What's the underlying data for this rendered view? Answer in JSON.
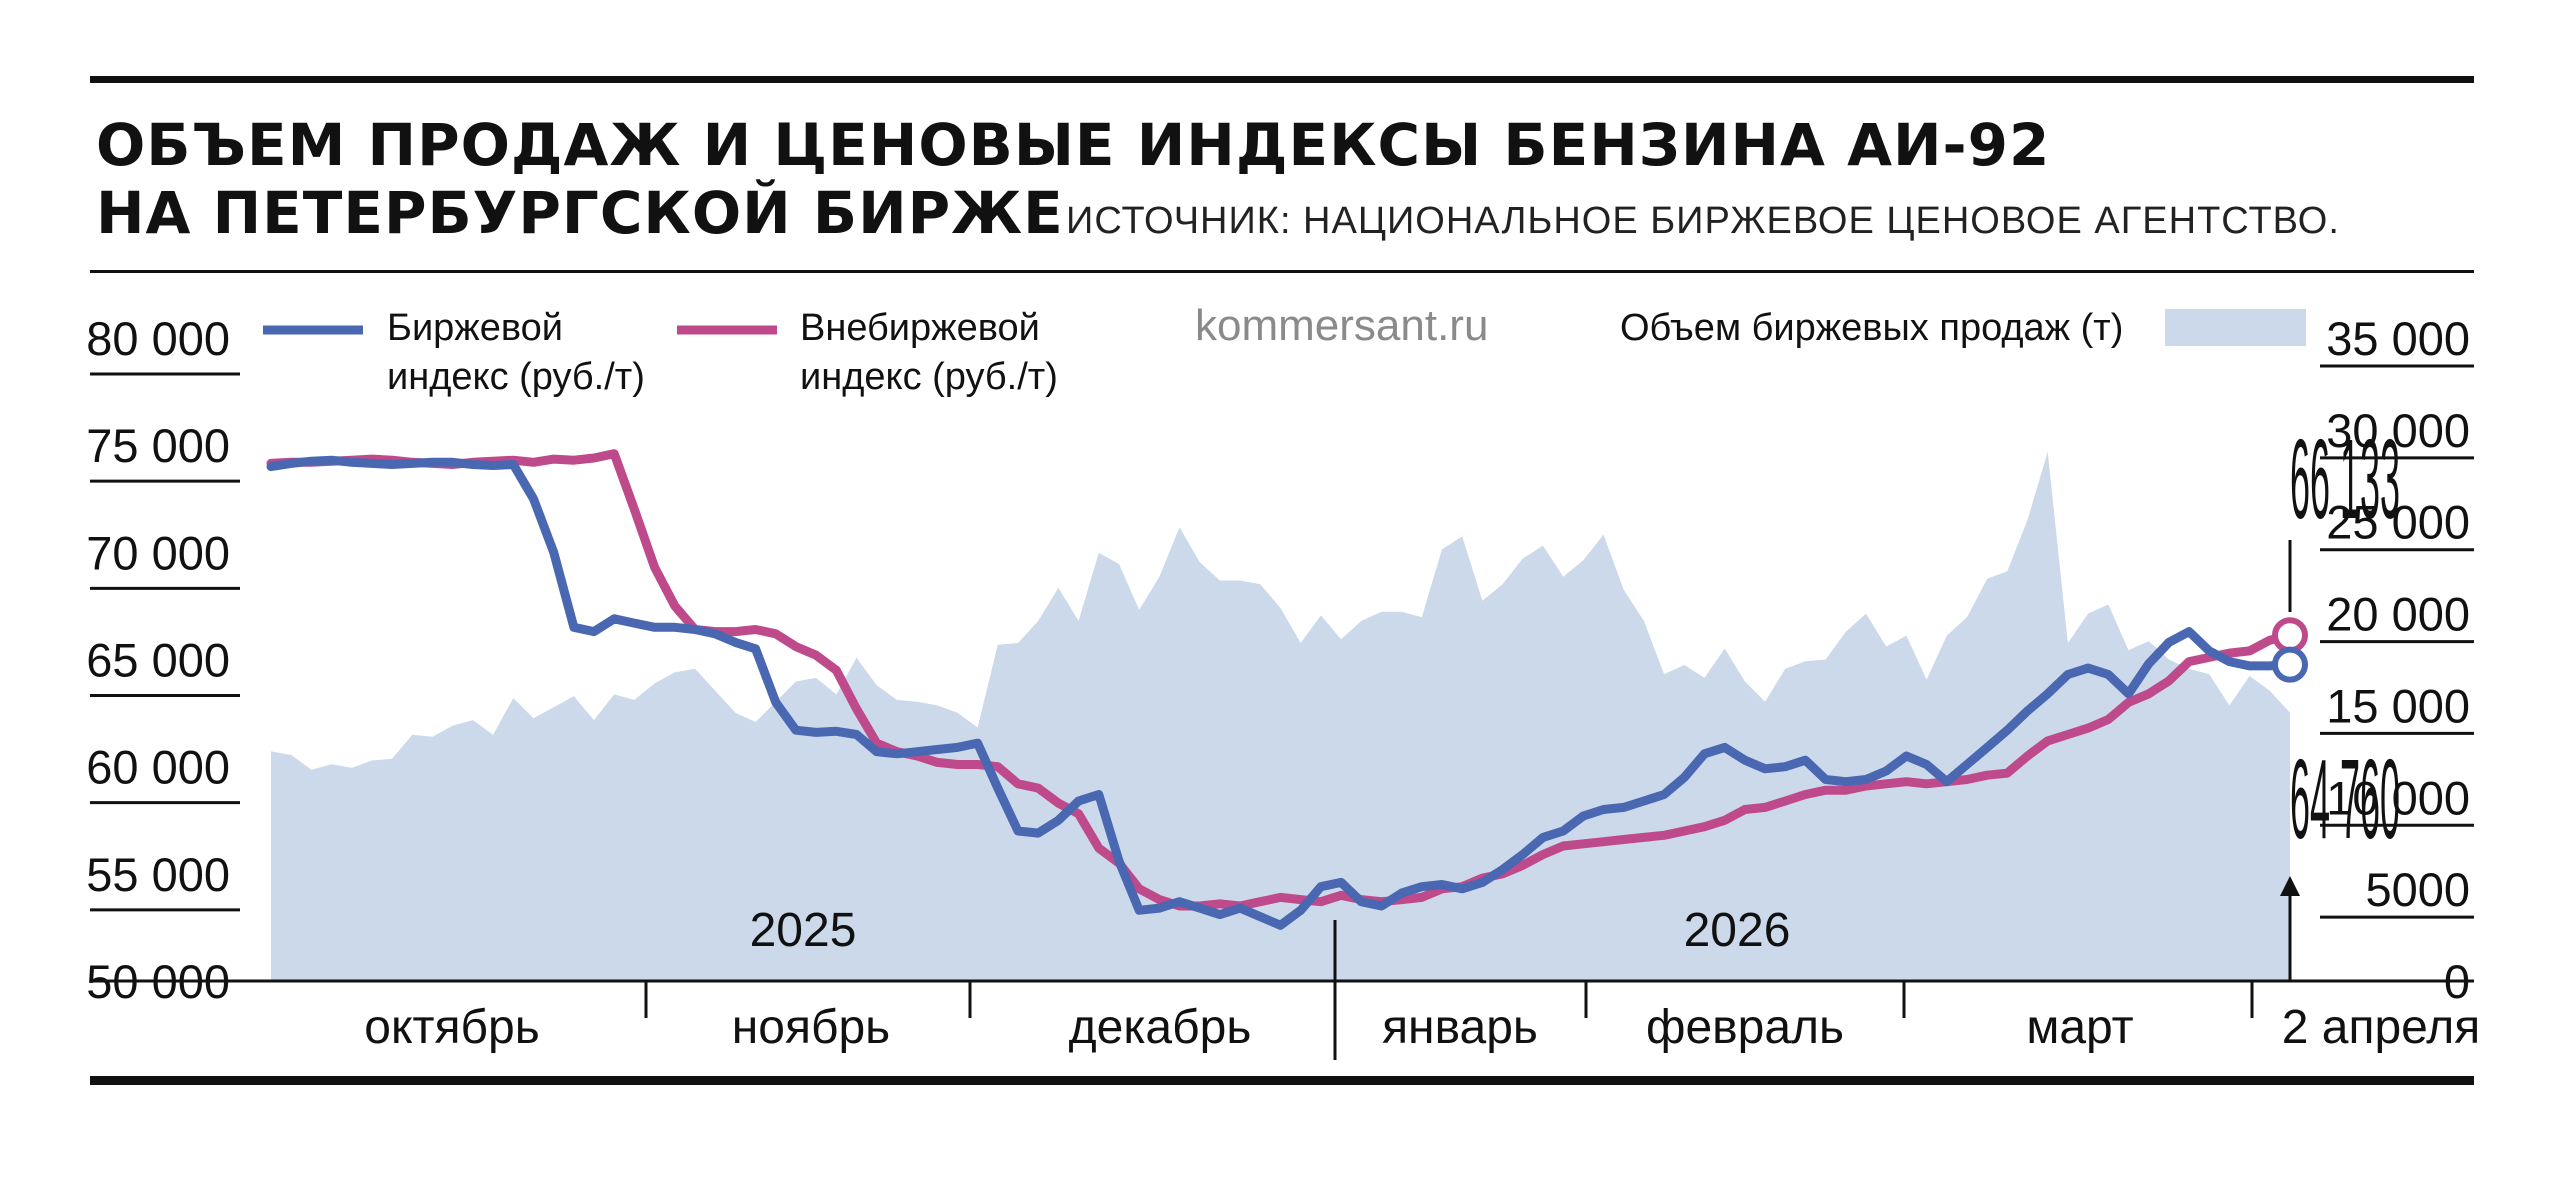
{
  "header": {
    "title_line1": "ОБЪЕМ ПРОДАЖ И ЦЕНОВЫЕ ИНДЕКСЫ БЕНЗИНА АИ-92",
    "title_line2": "НА ПЕТЕРБУРГСКОЙ БИРЖЕ",
    "source": "ИСТОЧНИК: НАЦИОНАЛЬНОЕ БИРЖЕВОЕ ЦЕНОВОЕ АГЕНТСТВО."
  },
  "watermark": "kommersant.ru",
  "legend": {
    "exchange_line1": "Биржевой",
    "exchange_line2": "индекс (руб./т)",
    "otc_line1": "Внебиржевой",
    "otc_line2": "индекс (руб./т)",
    "volume": "Объем биржевых продаж (т)"
  },
  "years": [
    "2025",
    "2026"
  ],
  "months": [
    "октябрь",
    "ноябрь",
    "декабрь",
    "январь",
    "февраль",
    "март",
    "2 апреля"
  ],
  "callouts": {
    "otc_last": "66 133",
    "exchange_last": "64 760"
  },
  "colors": {
    "exchange": "#4a67b2",
    "otc": "#bf4a8b",
    "volume": "#cbd9ea",
    "rule": "#111111"
  },
  "chart_data": {
    "type": "line",
    "y_left": {
      "ticks": [
        "80 000",
        "75 000",
        "70 000",
        "65 000",
        "60 000",
        "55 000",
        "50 000"
      ],
      "ylim": [
        50000,
        80000
      ]
    },
    "y_right": {
      "ticks": [
        "35 000",
        "30 000",
        "25 000",
        "20 000",
        "15 000",
        "10 000",
        "5000",
        "0"
      ],
      "ylim": [
        0,
        35000
      ]
    },
    "x_points": 101,
    "series": [
      {
        "name": "Биржевой индекс (руб./т)",
        "axis": "left",
        "values": [
          74000,
          74150,
          74250,
          74300,
          74200,
          74150,
          74100,
          74150,
          74200,
          74200,
          74100,
          74050,
          74100,
          72500,
          70000,
          66500,
          66300,
          66900,
          66700,
          66500,
          66500,
          66400,
          66200,
          65800,
          65500,
          63000,
          61700,
          61600,
          61650,
          61500,
          60700,
          60600,
          60700,
          60800,
          60900,
          61100,
          59000,
          57000,
          56900,
          57500,
          58400,
          58700,
          55600,
          53300,
          53400,
          53700,
          53400,
          53100,
          53400,
          53000,
          52600,
          53300,
          54400,
          54600,
          53700,
          53500,
          54100,
          54400,
          54500,
          54300,
          54600,
          55200,
          55900,
          56700,
          57000,
          57700,
          58000,
          58100,
          58400,
          58700,
          59500,
          60600,
          60900,
          60300,
          59900,
          60000,
          60300,
          59400,
          59300,
          59400,
          59800,
          60500,
          60100,
          59300,
          60100,
          60900,
          61700,
          62600,
          63400,
          64300,
          64600,
          64300,
          63400,
          64800,
          65800,
          66300,
          65400,
          64900,
          64700,
          64700,
          64760
        ]
      },
      {
        "name": "Внебиржевой индекс (руб./т)",
        "axis": "left",
        "values": [
          74150,
          74200,
          74200,
          74250,
          74300,
          74350,
          74300,
          74200,
          74150,
          74100,
          74200,
          74250,
          74300,
          74200,
          74350,
          74300,
          74400,
          74600,
          72000,
          69300,
          67500,
          66400,
          66300,
          66300,
          66400,
          66200,
          65600,
          65200,
          64500,
          62700,
          61100,
          60700,
          60500,
          60200,
          60100,
          60100,
          60000,
          59200,
          59000,
          58300,
          57800,
          56200,
          55500,
          54300,
          53800,
          53500,
          53500,
          53600,
          53500,
          53700,
          53900,
          53800,
          53700,
          54000,
          53800,
          53700,
          53800,
          53900,
          54300,
          54400,
          54800,
          55000,
          55400,
          55900,
          56300,
          56400,
          56500,
          56600,
          56700,
          56800,
          57000,
          57200,
          57500,
          58000,
          58100,
          58400,
          58700,
          58900,
          58900,
          59100,
          59200,
          59300,
          59200,
          59300,
          59400,
          59600,
          59700,
          60500,
          61200,
          61500,
          61800,
          62200,
          63000,
          63400,
          64000,
          64900,
          65100,
          65300,
          65400,
          65900,
          66133
        ]
      },
      {
        "name": "Объем биржевых продаж (т)",
        "axis": "right",
        "type": "area",
        "values": [
          12500,
          12300,
          11500,
          11800,
          11600,
          12000,
          12100,
          13400,
          13300,
          13900,
          14200,
          13400,
          15400,
          14300,
          14900,
          15500,
          14200,
          15600,
          15300,
          16200,
          16800,
          17000,
          15800,
          14600,
          14100,
          15200,
          16300,
          16500,
          15600,
          17600,
          16100,
          15300,
          15200,
          15000,
          14600,
          13800,
          18300,
          18400,
          19600,
          21400,
          19600,
          23300,
          22700,
          20200,
          22000,
          24700,
          22800,
          21800,
          21800,
          21600,
          20300,
          18400,
          19900,
          18600,
          19600,
          20100,
          20100,
          19800,
          23500,
          24200,
          20700,
          21600,
          23000,
          23700,
          22000,
          22900,
          24300,
          21300,
          19600,
          16700,
          17200,
          16500,
          18100,
          16300,
          15200,
          17000,
          17400,
          17500,
          19000,
          20000,
          18200,
          18800,
          16400,
          18800,
          19800,
          21900,
          22300,
          25100,
          28800,
          18400,
          20000,
          20500,
          18000,
          18500,
          17500,
          17000,
          16700,
          15000,
          16600,
          15800,
          14600
        ]
      }
    ]
  }
}
